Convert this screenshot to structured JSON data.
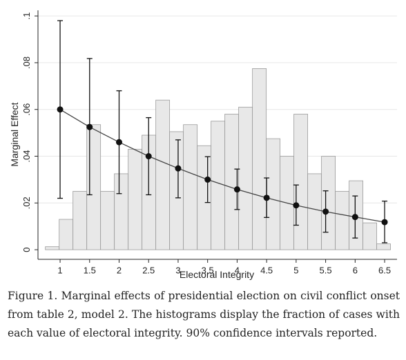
{
  "chart_data": {
    "type": "histogram_line",
    "xlabel": "Electoral Integrity",
    "ylabel": "Marginal Effect",
    "xlim": [
      0.625,
      6.71
    ],
    "ylim": [
      -0.0041,
      0.1024
    ],
    "xticks": [
      1,
      1.5,
      2,
      2.5,
      3,
      3.5,
      4,
      4.5,
      5,
      5.5,
      6,
      6.5
    ],
    "yticks": [
      0,
      {
        "value": 0.02,
        "label": ".02"
      },
      {
        "value": 0.04,
        "label": ".04"
      },
      {
        "value": 0.06,
        "label": ".06"
      },
      {
        "value": 0.08,
        "label": ".08"
      },
      {
        "value": 0.1,
        "label": ".1"
      }
    ],
    "grid": true,
    "histogram": {
      "color": "#e8e8e8",
      "bins": [
        0.75,
        0.984,
        1.218,
        1.452,
        1.686,
        1.92,
        2.154,
        2.388,
        2.622,
        2.856,
        3.09,
        3.324,
        3.558,
        3.792,
        4.026,
        4.26,
        4.494,
        4.728,
        4.962,
        5.196,
        5.43,
        5.664,
        5.898,
        6.132,
        6.366,
        6.6
      ],
      "values": [
        0.0013,
        0.013,
        0.025,
        0.0535,
        0.025,
        0.0325,
        0.043,
        0.049,
        0.064,
        0.0505,
        0.0535,
        0.0445,
        0.055,
        0.058,
        0.061,
        0.0775,
        0.0475,
        0.04,
        0.058,
        0.0325,
        0.04,
        0.025,
        0.0295,
        0.0115,
        0.0025
      ]
    },
    "effect": {
      "color": "#111111",
      "x": [
        1,
        1.5,
        2,
        2.5,
        3,
        3.5,
        4,
        4.5,
        5,
        5.5,
        6,
        6.5
      ],
      "values": [
        0.06,
        0.0525,
        0.046,
        0.04,
        0.0348,
        0.03,
        0.0258,
        0.0222,
        0.019,
        0.0163,
        0.014,
        0.0118
      ],
      "ci_high": [
        0.098,
        0.0818,
        0.068,
        0.0565,
        0.047,
        0.0398,
        0.0345,
        0.0307,
        0.0277,
        0.0252,
        0.023,
        0.0208
      ],
      "ci_low": [
        0.022,
        0.0235,
        0.024,
        0.0235,
        0.0222,
        0.0202,
        0.0172,
        0.0138,
        0.0105,
        0.0075,
        0.005,
        0.003
      ]
    }
  },
  "caption": "Figure 1. Marginal effects of presidential election on civil conflict onset from table 2, model 2. The histograms display the fraction of cases with each value of electoral integrity. 90% confidence intervals reported."
}
